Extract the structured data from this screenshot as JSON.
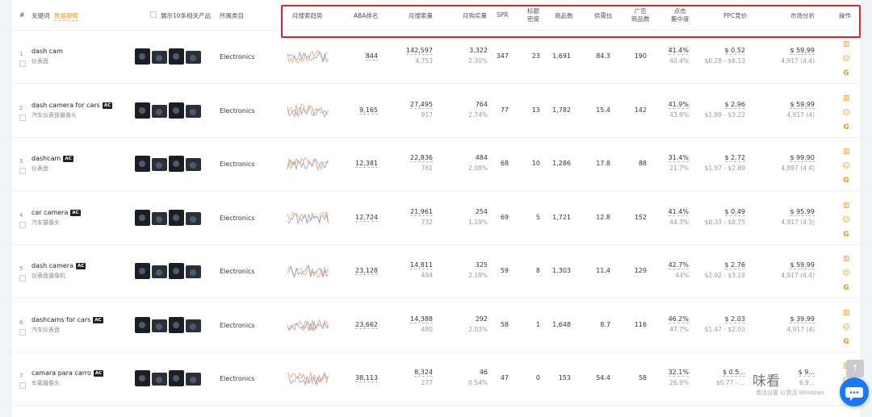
{
  "header": {
    "index": "#",
    "keyword": "关键词",
    "keyword_link": "数据解释",
    "show_products": "展示10条相关产品",
    "category": "所属类目",
    "trend": "月搜索趋势",
    "aba": "ABA排名",
    "monthly_search": "月搜索量",
    "monthly_purchase": "月购买量",
    "spr": "SPR",
    "title_density_1": "标题",
    "title_density_2": "密度",
    "product_count": "商品数",
    "supply_demand": "供需比",
    "ad_products_1": "广告",
    "ad_products_2": "商品数",
    "click_conc_1": "点击",
    "click_conc_2": "集中度",
    "ppc": "PPC竞价",
    "market": "市场分析",
    "ops": "操作"
  },
  "rows": [
    {
      "idx": "1",
      "kw": "dash cam",
      "ac": "",
      "cn": "仪表盘",
      "cat": "Electronics",
      "aba": "844",
      "search": "142,597",
      "search_sub": "4,753",
      "purchase": "3,322",
      "purchase_pct": "2.30%",
      "spr": "347",
      "title": "23",
      "products": "1,691",
      "ratio": "84.3",
      "ads": "190",
      "click": "41.4%",
      "click_sub": "40.4%",
      "ppc": "$ 0.52",
      "ppc_range": "$0.28 - $6.13",
      "price": "$ 59.99",
      "rating": "4,917 (4.4)"
    },
    {
      "idx": "2",
      "kw": "dash camera for cars",
      "ac": "AC",
      "cn": "汽车仪表盘摄像头",
      "cat": "Electronics",
      "aba": "9,165",
      "search": "27,495",
      "search_sub": "917",
      "purchase": "764",
      "purchase_pct": "2.74%",
      "spr": "77",
      "title": "13",
      "products": "1,782",
      "ratio": "15.4",
      "ads": "142",
      "click": "41.9%",
      "click_sub": "43.9%",
      "ppc": "$ 2.96",
      "ppc_range": "$1.99 - $3.22",
      "price": "$ 59.99",
      "rating": "4,917 (4)"
    },
    {
      "idx": "3",
      "kw": "dashcam",
      "ac": "AC",
      "cn": "仪表盘",
      "cat": "Electronics",
      "aba": "12,381",
      "search": "22,836",
      "search_sub": "761",
      "purchase": "484",
      "purchase_pct": "2.08%",
      "spr": "68",
      "title": "10",
      "products": "1,286",
      "ratio": "17.8",
      "ads": "88",
      "click": "31.4%",
      "click_sub": "21.7%",
      "ppc": "$ 2.72",
      "ppc_range": "$1.97 - $2.89",
      "price": "$ 99.90",
      "rating": "4,897 (4.4)"
    },
    {
      "idx": "4",
      "kw": "car camera",
      "ac": "AC",
      "cn": "汽车摄像头",
      "cat": "Electronics",
      "aba": "12,724",
      "search": "21,961",
      "search_sub": "732",
      "purchase": "254",
      "purchase_pct": "1.19%",
      "spr": "69",
      "title": "5",
      "products": "1,721",
      "ratio": "12.8",
      "ads": "152",
      "click": "41.4%",
      "click_sub": "44.3%",
      "ppc": "$ 0.49",
      "ppc_range": "$0.33 - $0.75",
      "price": "$ 95.99",
      "rating": "4,917 (4.3)"
    },
    {
      "idx": "5",
      "kw": "dash camera",
      "ac": "AC",
      "cn": "仪表盘摄像机",
      "cat": "Electronics",
      "aba": "23,128",
      "search": "14,811",
      "search_sub": "494",
      "purchase": "325",
      "purchase_pct": "2.19%",
      "spr": "59",
      "title": "8",
      "products": "1,303",
      "ratio": "11.4",
      "ads": "129",
      "click": "42.7%",
      "click_sub": "44%",
      "ppc": "$ 2.76",
      "ppc_range": "$2.02 - $3.19",
      "price": "$ 59.99",
      "rating": "4,917 (4.4)"
    },
    {
      "idx": "6",
      "kw": "dashcams for cars",
      "ac": "AC",
      "cn": "汽车仪表盘",
      "cat": "Electronics",
      "aba": "23,662",
      "search": "14,388",
      "search_sub": "480",
      "purchase": "292",
      "purchase_pct": "2.03%",
      "spr": "58",
      "title": "1",
      "products": "1,648",
      "ratio": "8.7",
      "ads": "116",
      "click": "46.2%",
      "click_sub": "47.7%",
      "ppc": "$ 2.03",
      "ppc_range": "$1.47 - $2.03",
      "price": "$ 39.99",
      "rating": "4,917 (4)"
    },
    {
      "idx": "7",
      "kw": "camara para carro",
      "ac": "AC",
      "cn": "车载摄像头",
      "cat": "Electronics",
      "aba": "38,113",
      "search": "8,324",
      "search_sub": "277",
      "purchase": "46",
      "purchase_pct": "0.54%",
      "spr": "47",
      "title": "0",
      "products": "153",
      "ratio": "54.4",
      "ads": "58",
      "click": "32.1%",
      "click_sub": "26.9%",
      "ppc": "$ 0.5...",
      "ppc_range": "$0.77 - ...",
      "price": "$ 9...",
      "rating": "6,9..."
    }
  ],
  "icons": [
    "bar-chart-icon",
    "smile-icon",
    "google-icon"
  ],
  "watermark": "味看",
  "watermark_sub": "激活设置 以激活 Windows",
  "highlight_color": "#e5202e",
  "accent_color": "#f0961e"
}
